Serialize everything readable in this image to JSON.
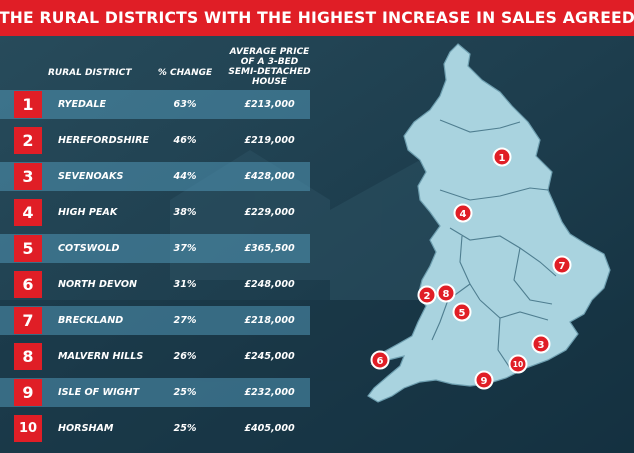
{
  "title": "THE RURAL DISTRICTS WITH THE HIGHEST INCREASE IN SALES AGREED",
  "columns": {
    "district": "RURAL DISTRICT",
    "change": "% CHANGE",
    "price": [
      "AVERAGE PRICE",
      "OF A 3-BED",
      "SEMI-DETACHED",
      "HOUSE"
    ]
  },
  "colors": {
    "accent": "#e01e26",
    "background": "#1b3a4a",
    "row_highlight": "#3f88a6",
    "map_land": "#a9d3df",
    "map_border": "#4f7e90"
  },
  "chart_data": {
    "type": "table",
    "title": "THE RURAL DISTRICTS WITH THE HIGHEST INCREASE IN SALES AGREED",
    "rows": [
      {
        "rank": "1",
        "district": "RYEDALE",
        "change": "63%",
        "price": "£213,000"
      },
      {
        "rank": "2",
        "district": "HEREFORDSHIRE",
        "change": "46%",
        "price": "£219,000"
      },
      {
        "rank": "3",
        "district": "SEVENOAKS",
        "change": "44%",
        "price": "£428,000"
      },
      {
        "rank": "4",
        "district": "HIGH PEAK",
        "change": "38%",
        "price": "£229,000"
      },
      {
        "rank": "5",
        "district": "COTSWOLD",
        "change": "37%",
        "price": "£365,500"
      },
      {
        "rank": "6",
        "district": "NORTH DEVON",
        "change": "31%",
        "price": "£248,000"
      },
      {
        "rank": "7",
        "district": "BRECKLAND",
        "change": "27%",
        "price": "£218,000"
      },
      {
        "rank": "8",
        "district": "MALVERN HILLS",
        "change": "26%",
        "price": "£245,000"
      },
      {
        "rank": "9",
        "district": "ISLE OF WIGHT",
        "change": "25%",
        "price": "£232,000"
      },
      {
        "rank": "10",
        "district": "HORSHAM",
        "change": "25%",
        "price": "£405,000"
      }
    ]
  },
  "map": {
    "region": "England",
    "markers": [
      "1",
      "2",
      "3",
      "4",
      "5",
      "6",
      "7",
      "8",
      "9",
      "10"
    ]
  }
}
